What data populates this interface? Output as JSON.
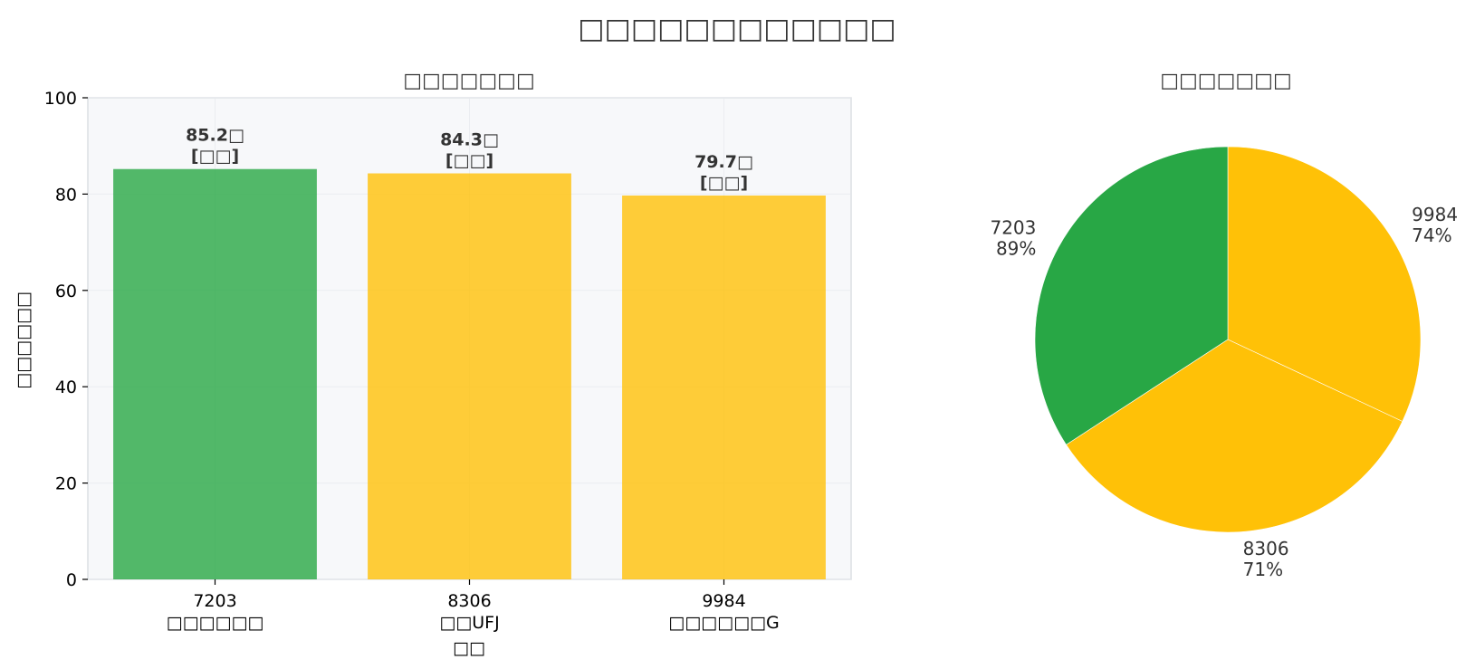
{
  "title": "□□□□□□□□□□□□",
  "chart_data": [
    {
      "type": "bar",
      "title": "□□□□□□□",
      "xlabel": "□□",
      "ylabel": "□□□□□□",
      "ylim": [
        0,
        100
      ],
      "yticks": [
        0,
        20,
        40,
        60,
        80,
        100
      ],
      "grid": true,
      "categories": [
        "7203",
        "8306",
        "9984"
      ],
      "category_sublabels": [
        "□□□□□□",
        "□□UFJ",
        "□□□□□□G"
      ],
      "values": [
        85.2,
        84.3,
        79.7
      ],
      "value_labels": [
        "85.2□",
        "84.3□",
        "79.7□"
      ],
      "bracket_labels": [
        "[□□]",
        "[□□]",
        "[□□]"
      ],
      "colors": [
        "#28a745",
        "#ffc107",
        "#ffc107"
      ]
    },
    {
      "type": "pie",
      "title": "□□□□□□□",
      "slices": [
        {
          "label": "9984",
          "pct_label": "74%",
          "value": 79.7,
          "color": "#ffc107"
        },
        {
          "label": "8306",
          "pct_label": "71%",
          "value": 84.3,
          "color": "#ffc107"
        },
        {
          "label": "7203",
          "pct_label": "89%",
          "value": 85.2,
          "color": "#28a745"
        }
      ],
      "start_angle_deg": 90,
      "direction": "clockwise"
    }
  ]
}
